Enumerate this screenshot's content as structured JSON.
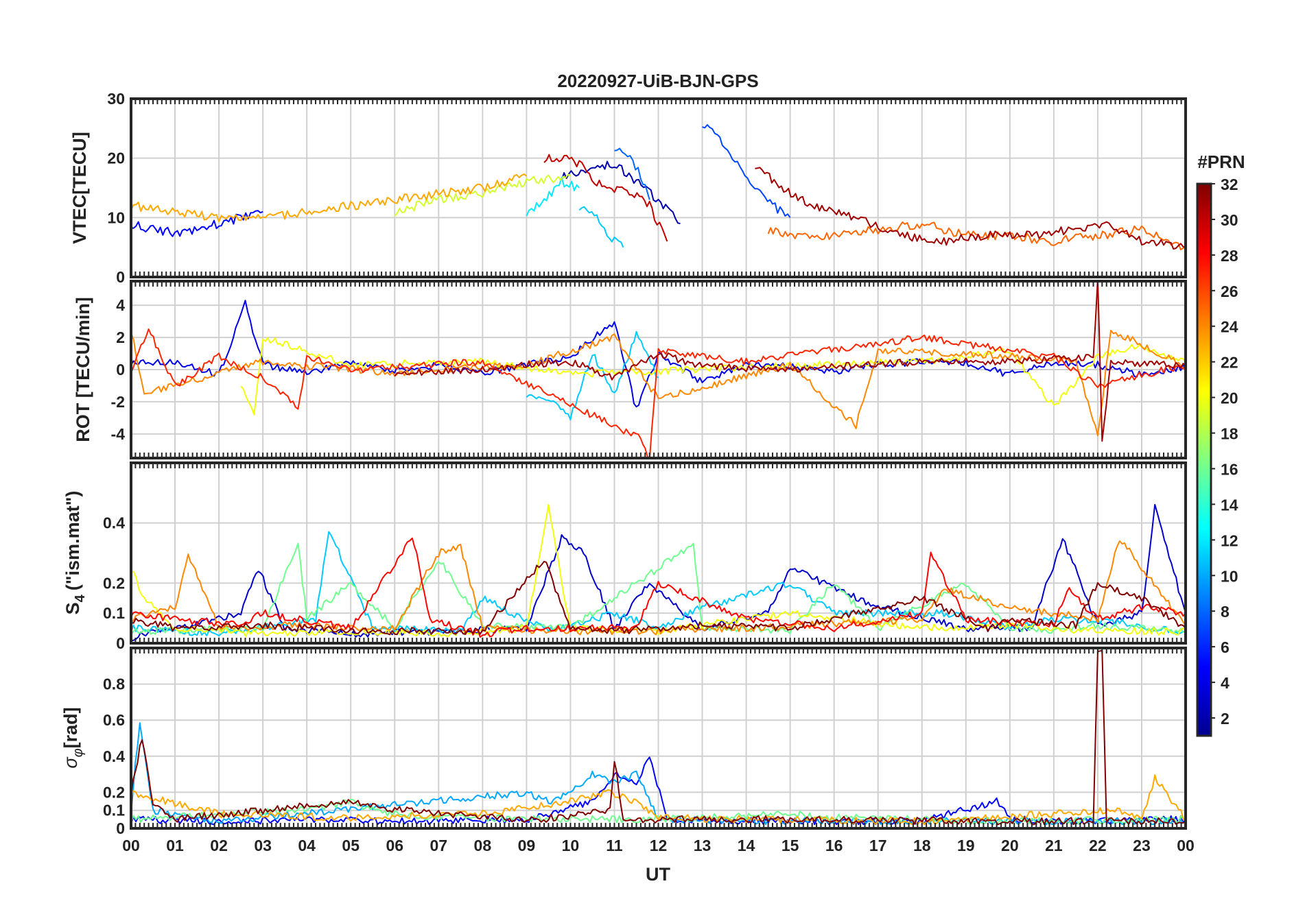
{
  "title": "20220927-UiB-BJN-GPS",
  "xlabel": "UT",
  "colorbar": {
    "title": "#PRN",
    "ticks": [
      "2",
      "4",
      "6",
      "8",
      "10",
      "12",
      "14",
      "16",
      "18",
      "20",
      "22",
      "24",
      "26",
      "28",
      "30",
      "32"
    ],
    "range": [
      1,
      32
    ],
    "colormap": [
      "#00008f",
      "#0000ff",
      "#0080ff",
      "#00ffff",
      "#80ff80",
      "#ffff00",
      "#ff8000",
      "#ff0000",
      "#800000"
    ]
  },
  "chart_data": [
    {
      "type": "line",
      "panel": "vtec",
      "ylabel": "VTEC[TECU]",
      "ylim": [
        0,
        30
      ],
      "yticks": [
        "0",
        "10",
        "20",
        "30"
      ],
      "xlim": [
        0,
        24
      ],
      "xticks": [
        "00",
        "01",
        "02",
        "03",
        "04",
        "05",
        "06",
        "07",
        "08",
        "09",
        "10",
        "11",
        "12",
        "13",
        "14",
        "15",
        "16",
        "17",
        "18",
        "19",
        "20",
        "21",
        "22",
        "23",
        "00"
      ],
      "grid": true,
      "series": [
        {
          "prn": 2,
          "x": [
            9.8,
            10.4,
            11.0,
            11.5,
            12.0,
            12.5
          ],
          "y": [
            17,
            18,
            19,
            16,
            13,
            9
          ]
        },
        {
          "prn": 5,
          "x": [
            0.0,
            0.5,
            1.0,
            1.5,
            2.0,
            2.5,
            3.0
          ],
          "y": [
            9,
            8,
            7.5,
            8,
            9,
            10,
            11
          ]
        },
        {
          "prn": 7,
          "x": [
            13.0,
            13.4,
            13.8,
            14.2,
            14.6,
            15.0
          ],
          "y": [
            26,
            23,
            19,
            15,
            12,
            10
          ]
        },
        {
          "prn": 8,
          "x": [
            11.0,
            11.3,
            11.6,
            11.8
          ],
          "y": [
            22,
            21,
            17,
            13
          ]
        },
        {
          "prn": 11,
          "x": [
            10.2,
            10.6,
            11.0,
            11.2
          ],
          "y": [
            12,
            10,
            6,
            5
          ]
        },
        {
          "prn": 12,
          "x": [
            9.0,
            9.4,
            9.8,
            10.2
          ],
          "y": [
            11,
            13,
            16,
            15
          ]
        },
        {
          "prn": 19,
          "x": [
            6.0,
            7.0,
            8.0,
            9.0,
            10.0
          ],
          "y": [
            11,
            13,
            14,
            16,
            17
          ]
        },
        {
          "prn": 23,
          "x": [
            0.0,
            1.0,
            2.0,
            3.0,
            4.0,
            5.0,
            6.0,
            7.0,
            8.0,
            9.0
          ],
          "y": [
            12,
            11,
            10,
            10,
            11,
            12,
            13,
            14,
            15,
            17
          ]
        },
        {
          "prn": 25,
          "x": [
            14.5,
            15.0,
            16.0,
            17.0,
            18.0,
            19.0,
            20.0,
            21.0,
            22.0,
            23.0,
            24.0
          ],
          "y": [
            8,
            7,
            7,
            8,
            9,
            7,
            7,
            6,
            7,
            8,
            5
          ]
        },
        {
          "prn": 30,
          "x": [
            9.4,
            9.8,
            10.2,
            10.6,
            11.0,
            11.4,
            11.8,
            12.2
          ],
          "y": [
            20,
            20,
            19,
            16,
            15,
            14,
            12,
            6
          ]
        },
        {
          "prn": 31,
          "x": [
            14.2,
            14.8,
            15.5,
            16.5,
            17.5,
            18.5,
            19.5,
            20.5,
            21.5,
            22.2,
            23.0,
            24.0
          ],
          "y": [
            19,
            15,
            12,
            10,
            7,
            6,
            7,
            7,
            8,
            9,
            6,
            5
          ]
        }
      ]
    },
    {
      "type": "line",
      "panel": "rot",
      "ylabel": "ROT [TECU/min]",
      "ylim": [
        -5.5,
        5.5
      ],
      "yticks": [
        "-4",
        "-2",
        "0",
        "2",
        "4"
      ],
      "xlim": [
        0,
        24
      ],
      "grid": true,
      "series": [
        {
          "prn": 4,
          "x": [
            0.0,
            1.0,
            2.0,
            2.6,
            3.0,
            4.0,
            5.0,
            6.0,
            7.0,
            8.0,
            9.0,
            10.0,
            11.0,
            11.5,
            12.0,
            13.0,
            14.0,
            15.0,
            16.0,
            17.0,
            18.0,
            19.0,
            20.0,
            21.0,
            22.0,
            23.0,
            24.0
          ],
          "y": [
            0.5,
            0.4,
            -0.3,
            4.1,
            0.3,
            -0.2,
            0.4,
            0.0,
            0.3,
            -0.2,
            0.3,
            0.8,
            3.0,
            -2.5,
            1.0,
            -0.8,
            0.3,
            0.2,
            -0.1,
            0.3,
            0.5,
            0.4,
            -0.3,
            0.5,
            0.3,
            -0.3,
            0.2
          ]
        },
        {
          "prn": 11,
          "x": [
            9.0,
            9.5,
            10.0,
            10.5,
            11.0,
            11.5,
            12.0
          ],
          "y": [
            -1.5,
            -1.8,
            -3.0,
            1.0,
            -1.5,
            2.2,
            -0.5
          ]
        },
        {
          "prn": 20,
          "x": [
            2.5,
            2.8,
            3.0,
            5.0,
            8.0,
            10.0,
            18.5,
            20.0,
            21.0,
            22.0,
            23.0,
            24.0
          ],
          "y": [
            -0.8,
            -2.8,
            2.0,
            0.3,
            0.5,
            -0.3,
            0.6,
            1.2,
            -2.3,
            0.8,
            1.5,
            0.4
          ]
        },
        {
          "prn": 24,
          "x": [
            0.0,
            0.3,
            3.0,
            6.0,
            9.0,
            11.0,
            12.0,
            15.0,
            16.5,
            17.0,
            19.0,
            21.5,
            22.0,
            22.3,
            24.0
          ],
          "y": [
            2.5,
            -1.5,
            0.5,
            -0.2,
            0.3,
            2.0,
            -1.8,
            0.3,
            -3.5,
            1.2,
            1.0,
            0.6,
            -4.2,
            2.5,
            0.2
          ]
        },
        {
          "prn": 27,
          "x": [
            0.0,
            0.4,
            1.0,
            2.0,
            3.0,
            3.8,
            4.0,
            5.0,
            8.0,
            11.6,
            11.8,
            12.0,
            14.0,
            18.0,
            21.0,
            22.0,
            24.0
          ],
          "y": [
            0.0,
            2.5,
            -1.0,
            0.8,
            -0.5,
            -2.4,
            0.8,
            0.0,
            0.5,
            -4.3,
            -5.5,
            1.2,
            0.5,
            2.0,
            0.8,
            -1.0,
            0.3
          ]
        },
        {
          "prn": 31,
          "x": [
            6.0,
            8.0,
            9.0,
            10.0,
            11.0,
            12.0,
            13.0,
            15.0,
            18.0,
            20.0,
            21.9,
            22.0,
            22.1,
            22.3,
            24.0
          ],
          "y": [
            -0.2,
            0.0,
            0.3,
            0.5,
            -0.5,
            1.0,
            0.2,
            0.0,
            0.5,
            0.5,
            0.8,
            5.5,
            -4.5,
            0.5,
            0.2
          ]
        }
      ]
    },
    {
      "type": "line",
      "panel": "s4",
      "ylabel": "S4 (\"ism.mat\")",
      "ylim": [
        0,
        0.6
      ],
      "yticks": [
        "0",
        "0.1",
        "0.2",
        "0.4"
      ],
      "xlim": [
        0,
        24
      ],
      "grid": true,
      "series": [
        {
          "prn": 3,
          "x": [
            0.0,
            1.0,
            2.5,
            2.9,
            3.5,
            5.0,
            7.0,
            9.0,
            9.8,
            10.3,
            11.0,
            11.8,
            13.0,
            14.5,
            15.0,
            17.0,
            19.0,
            20.5,
            21.2,
            22.0,
            23.0,
            23.3,
            24.0
          ],
          "y": [
            0.02,
            0.05,
            0.1,
            0.25,
            0.05,
            0.03,
            0.04,
            0.05,
            0.35,
            0.3,
            0.05,
            0.2,
            0.05,
            0.1,
            0.25,
            0.12,
            0.05,
            0.05,
            0.35,
            0.06,
            0.1,
            0.45,
            0.1
          ]
        },
        {
          "prn": 11,
          "x": [
            0.0,
            2.0,
            4.2,
            4.5,
            5.5,
            7.5,
            8.0,
            9.5,
            11.0,
            12.0,
            13.0,
            15.0,
            16.0,
            18.5,
            20.0,
            21.0,
            22.5,
            23.0,
            24.0
          ],
          "y": [
            0.05,
            0.03,
            0.08,
            0.38,
            0.05,
            0.04,
            0.15,
            0.04,
            0.1,
            0.05,
            0.12,
            0.2,
            0.1,
            0.1,
            0.05,
            0.08,
            0.07,
            0.05,
            0.04
          ]
        },
        {
          "prn": 16,
          "x": [
            0.0,
            3.0,
            3.8,
            4.0,
            5.0,
            6.0,
            7.0,
            8.0,
            10.0,
            11.0,
            12.8,
            13.0,
            15.0,
            16.0,
            17.0,
            19.0,
            20.0,
            21.0,
            22.0,
            24.0
          ],
          "y": [
            0.04,
            0.05,
            0.33,
            0.08,
            0.2,
            0.05,
            0.28,
            0.06,
            0.05,
            0.15,
            0.33,
            0.05,
            0.04,
            0.2,
            0.05,
            0.2,
            0.05,
            0.04,
            0.06,
            0.04
          ]
        },
        {
          "prn": 20,
          "x": [
            0.0,
            0.3,
            1.0,
            3.0,
            5.0,
            7.5,
            9.0,
            9.5,
            10.0,
            12.0,
            15.0,
            18.0,
            20.0,
            22.0,
            24.0
          ],
          "y": [
            0.25,
            0.15,
            0.05,
            0.03,
            0.04,
            0.03,
            0.05,
            0.45,
            0.05,
            0.04,
            0.1,
            0.05,
            0.06,
            0.04,
            0.04
          ]
        },
        {
          "prn": 24,
          "x": [
            0.0,
            1.0,
            1.3,
            2.0,
            3.5,
            6.0,
            7.0,
            7.5,
            8.0,
            10.0,
            12.0,
            13.5,
            14.0,
            18.0,
            18.5,
            20.0,
            22.0,
            22.5,
            24.0
          ],
          "y": [
            0.08,
            0.12,
            0.3,
            0.05,
            0.06,
            0.05,
            0.3,
            0.32,
            0.05,
            0.04,
            0.04,
            0.05,
            0.05,
            0.08,
            0.18,
            0.12,
            0.08,
            0.35,
            0.06
          ]
        },
        {
          "prn": 28,
          "x": [
            0.0,
            1.0,
            2.5,
            3.0,
            5.0,
            6.4,
            6.5,
            6.8,
            8.0,
            9.0,
            11.5,
            12.0,
            14.0,
            16.0,
            18.0,
            18.2,
            19.0,
            21.0,
            21.3,
            22.0,
            23.0,
            24.0
          ],
          "y": [
            0.1,
            0.08,
            0.06,
            0.1,
            0.05,
            0.35,
            0.3,
            0.08,
            0.03,
            0.05,
            0.05,
            0.2,
            0.08,
            0.05,
            0.1,
            0.3,
            0.08,
            0.06,
            0.18,
            0.08,
            0.12,
            0.1
          ]
        },
        {
          "prn": 32,
          "x": [
            0.0,
            1.0,
            3.0,
            5.0,
            8.0,
            9.4,
            9.6,
            10.0,
            11.0,
            13.0,
            15.0,
            18.0,
            19.5,
            20.0,
            21.5,
            22.0,
            23.0,
            24.0
          ],
          "y": [
            0.08,
            0.05,
            0.06,
            0.04,
            0.04,
            0.28,
            0.2,
            0.05,
            0.04,
            0.06,
            0.05,
            0.15,
            0.05,
            0.08,
            0.06,
            0.2,
            0.15,
            0.05
          ]
        }
      ]
    },
    {
      "type": "line",
      "panel": "sigma_phi",
      "ylabel": "σφ [rad]",
      "ylim": [
        0,
        1.0
      ],
      "yticks": [
        "0",
        "0.1",
        "0.2",
        "0.4",
        "0.6",
        "0.8"
      ],
      "xlim": [
        0,
        24
      ],
      "grid": true,
      "series": [
        {
          "prn": 5,
          "x": [
            0.0,
            2.0,
            4.0,
            6.0,
            9.0,
            10.5,
            11.0,
            11.5,
            11.8,
            12.2,
            14.0,
            18.0,
            19.7,
            20.0,
            21.0,
            24.0
          ],
          "y": [
            0.05,
            0.04,
            0.05,
            0.04,
            0.05,
            0.15,
            0.3,
            0.25,
            0.4,
            0.05,
            0.04,
            0.04,
            0.15,
            0.05,
            0.04,
            0.05
          ]
        },
        {
          "prn": 10,
          "x": [
            0.0,
            0.2,
            0.5,
            2.0,
            9.0,
            9.5,
            10.0,
            10.5,
            11.0,
            11.5,
            12.0,
            15.0,
            24.0
          ],
          "y": [
            0.1,
            0.6,
            0.1,
            0.04,
            0.2,
            0.15,
            0.2,
            0.3,
            0.25,
            0.3,
            0.05,
            0.04,
            0.04
          ]
        },
        {
          "prn": 16,
          "x": [
            0.0,
            3.5,
            4.5,
            5.0,
            5.5,
            6.0,
            7.0,
            12.0,
            15.0,
            16.0,
            18.0,
            20.0,
            24.0
          ],
          "y": [
            0.05,
            0.1,
            0.12,
            0.15,
            0.1,
            0.08,
            0.06,
            0.05,
            0.08,
            0.06,
            0.05,
            0.04,
            0.05
          ]
        },
        {
          "prn": 23,
          "x": [
            0.0,
            2.0,
            5.0,
            8.0,
            10.0,
            10.8,
            11.5,
            12.0,
            14.0,
            18.0,
            22.5,
            23.0,
            23.3,
            24.0
          ],
          "y": [
            0.2,
            0.08,
            0.06,
            0.08,
            0.15,
            0.2,
            0.15,
            0.06,
            0.05,
            0.04,
            0.1,
            0.06,
            0.28,
            0.05
          ]
        },
        {
          "prn": 32,
          "x": [
            0.0,
            0.25,
            0.5,
            1.0,
            5.0,
            5.5,
            9.0,
            10.9,
            11.0,
            11.2,
            14.0,
            20.0,
            21.9,
            22.0,
            22.1,
            22.2,
            24.0
          ],
          "y": [
            0.2,
            0.5,
            0.15,
            0.05,
            0.15,
            0.12,
            0.04,
            0.1,
            0.38,
            0.05,
            0.05,
            0.04,
            0.04,
            1.0,
            1.0,
            0.04,
            0.04
          ]
        }
      ]
    }
  ]
}
